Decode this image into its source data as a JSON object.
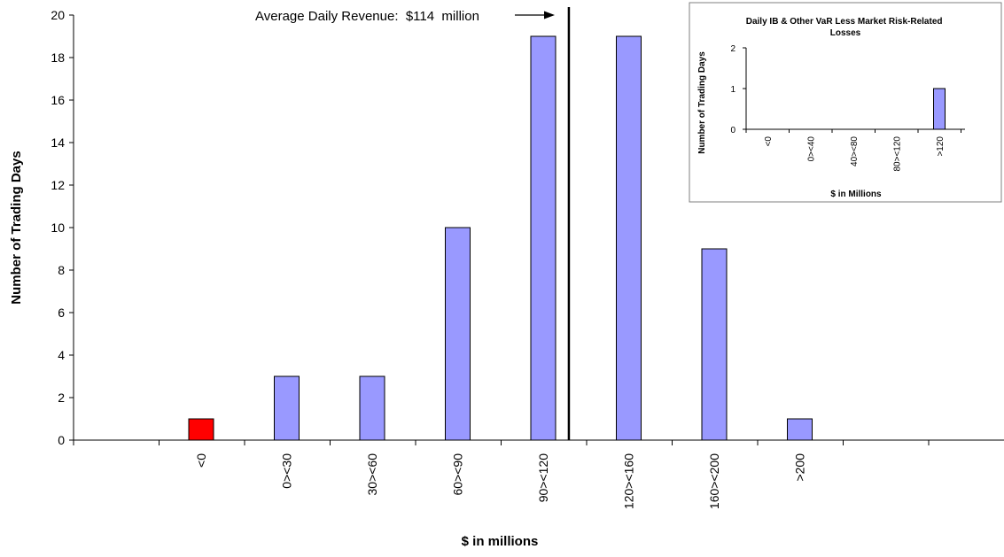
{
  "colors": {
    "bar": "#9999ff",
    "bar_highlight": "#ff0000",
    "axis": "#000000",
    "inset_border": "#7f7f7f"
  },
  "chart_data": [
    {
      "type": "bar",
      "categories": [
        "<0",
        "0><30",
        "30><60",
        "60><90",
        "90><120",
        "120><160",
        "160><200",
        ">200"
      ],
      "values": [
        1,
        3,
        3,
        10,
        19,
        19,
        9,
        1
      ],
      "highlight_category": "<0",
      "xlabel": "$ in millions",
      "ylabel": "Number of Trading Days",
      "ylim": [
        0,
        20
      ],
      "yticks": [
        0,
        2,
        4,
        6,
        8,
        10,
        12,
        14,
        16,
        18,
        20
      ],
      "grid": false,
      "annotation": {
        "text": "Average Daily Revenue:  $114  million",
        "value": 114
      }
    },
    {
      "type": "bar",
      "title": "Daily IB & Other VaR Less Market Risk-Related Losses",
      "categories": [
        "<0",
        "0><40",
        "40><80",
        "80><120",
        ">120"
      ],
      "values": [
        0,
        0,
        0,
        0,
        1
      ],
      "xlabel": "$ in Millions",
      "ylabel": "Number of Trading Days",
      "ylim": [
        0,
        2
      ],
      "yticks": [
        0,
        1,
        2
      ],
      "grid": false
    }
  ]
}
